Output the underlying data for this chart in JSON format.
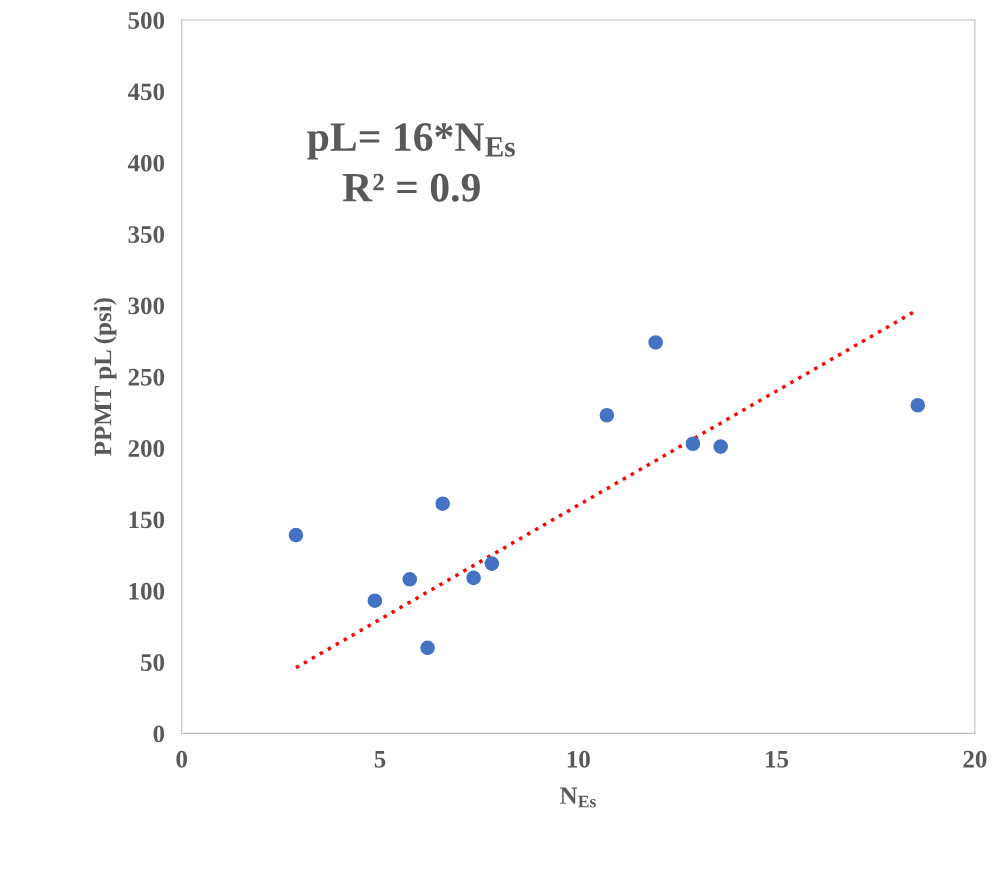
{
  "chart_data": {
    "type": "scatter",
    "xlabel": "N$_{Es}$",
    "ylabel": "PPMT pL (psi)",
    "xlim": [
      0,
      20
    ],
    "xticks": [
      0,
      5,
      10,
      15,
      20
    ],
    "ylim": [
      0,
      500
    ],
    "yticks": [
      0,
      50,
      100,
      150,
      200,
      250,
      300,
      350,
      400,
      450,
      500
    ],
    "grid": false,
    "marker": "circle",
    "annotations": [
      "pL= 16*N$_{Es}$",
      "R² = 0.9"
    ],
    "series": [
      {
        "color": "#4472c4",
        "x": [
          2.88,
          4.87,
          5.75,
          6.2,
          6.58,
          7.36,
          7.82,
          10.72,
          11.95,
          12.89,
          13.59,
          18.56
        ],
        "values": [
          139,
          93,
          108,
          60,
          161,
          109,
          119,
          223,
          274,
          203,
          201,
          230
        ]
      },
      {
        "type": "line",
        "color": "#ff0000",
        "line_style": "dotted",
        "marker": "none",
        "x": [
          2.88,
          18.56
        ],
        "values": [
          46,
          297
        ]
      }
    ]
  }
}
